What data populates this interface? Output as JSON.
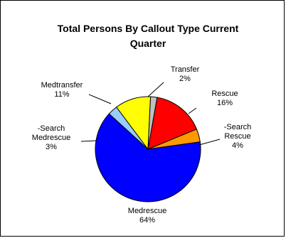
{
  "chart_data": {
    "type": "pie",
    "title": "Total Persons By Callout Type Current Quarter",
    "title_lines": [
      "Total Persons By Callout Type Current",
      "Quarter"
    ],
    "legend": "none",
    "slices": [
      {
        "name": "Rescue",
        "value": 16,
        "color": "#ff0000",
        "label_lines": [
          "Rescue",
          "16%"
        ]
      },
      {
        "name": "-Search Rescue",
        "value": 4,
        "color": "#ff9900",
        "label_lines": [
          "-Search",
          "Rescue",
          "4%"
        ]
      },
      {
        "name": "Medrescue",
        "value": 64,
        "color": "#0000ff",
        "label_lines": [
          "Medrescue",
          "64%"
        ]
      },
      {
        "name": "-Search Medrescue",
        "value": 3,
        "color": "#99ccff",
        "label_lines": [
          "-Search",
          "Medrescue",
          "3%"
        ]
      },
      {
        "name": "Medtransfer",
        "value": 11,
        "color": "#ffff00",
        "label_lines": [
          "Medtransfer",
          "11%"
        ]
      },
      {
        "name": "Transfer",
        "value": 2,
        "color": "#c0c0c0",
        "label_lines": [
          "Transfer",
          "2%"
        ]
      }
    ]
  }
}
